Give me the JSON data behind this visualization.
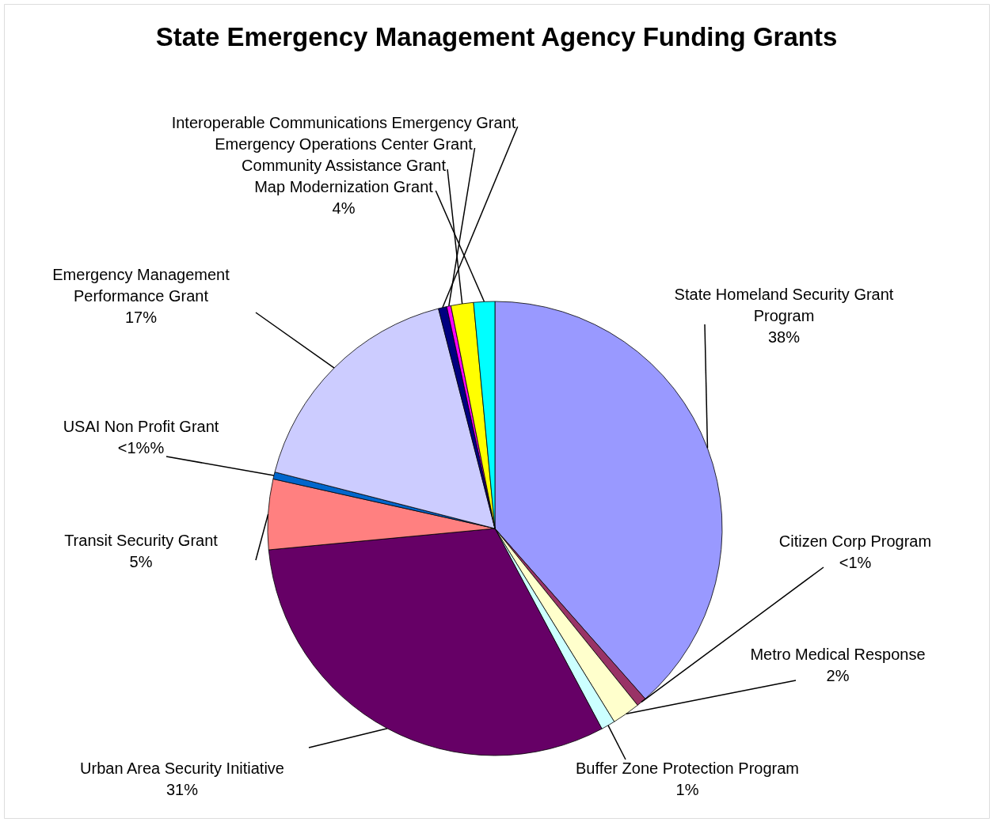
{
  "chart_data": {
    "type": "pie",
    "title": "State Emergency Management Agency Funding Grants",
    "categories": [
      "State Homeland Security Grant Program",
      "Citizen Corp Program",
      "Metro Medical Response",
      "Buffer Zone Protection Program",
      "Urban Area Security Initiative",
      "Transit Security Grant",
      "USAI Non Profit Grant",
      "Emergency Management Performance Grant",
      "Interoperable Communications Emergency Grant",
      "Emergency Operations Center Grant",
      "Community Assistance Grant",
      "Map Modernization Grant"
    ],
    "values": [
      38.5,
      0.7,
      2,
      1,
      31.3,
      5,
      0.5,
      17,
      0.6,
      0.3,
      1.6,
      1.5
    ],
    "colors": [
      "#9999ff",
      "#993366",
      "#ffffcc",
      "#ccffff",
      "#660066",
      "#ff8080",
      "#0066cc",
      "#ccccff",
      "#000080",
      "#ff00ff",
      "#ffff00",
      "#00ffff"
    ],
    "value_labels": [
      "38%",
      "<1%",
      "2%",
      "1%",
      "31%",
      "5%",
      "<1%%",
      "17%",
      null,
      null,
      null,
      null
    ],
    "annotations": [
      "4%"
    ],
    "legend": false
  }
}
